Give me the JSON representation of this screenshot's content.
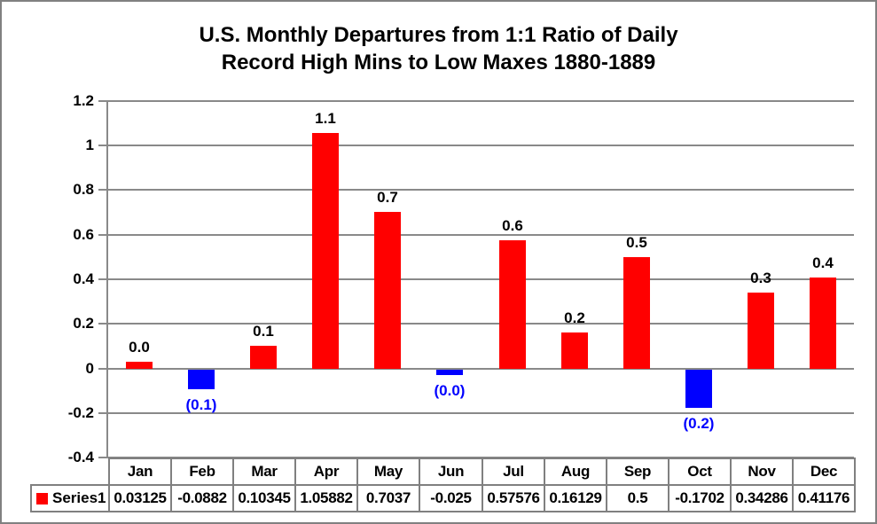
{
  "title": {
    "line1": "U.S. Monthly Departures from 1:1 Ratio of Daily",
    "line2": "Record High Mins to Low Maxes 1880-1889"
  },
  "legend": {
    "series_label": "Series1"
  },
  "colors": {
    "positive_bar": "#ff0000",
    "negative_bar": "#0000ff",
    "negative_label": "#0000ff",
    "positive_label": "#000000",
    "gridline": "#898989",
    "table_border": "#808080",
    "frame_border": "#808080",
    "text": "#000000"
  },
  "chart_data": {
    "type": "bar",
    "title": "U.S. Monthly Departures from 1:1 Ratio of Daily Record High Mins to Low Maxes 1880-1889",
    "categories": [
      "Jan",
      "Feb",
      "Mar",
      "Apr",
      "May",
      "Jun",
      "Jul",
      "Aug",
      "Sep",
      "Oct",
      "Nov",
      "Dec"
    ],
    "series": [
      {
        "name": "Series1",
        "values": [
          0.03125,
          -0.0882,
          0.10345,
          1.05882,
          0.7037,
          -0.025,
          0.57576,
          0.16129,
          0.5,
          -0.1702,
          0.34286,
          0.41176
        ]
      }
    ],
    "value_cell_text": [
      "0.03125",
      "-0.0882",
      "0.10345",
      "1.05882",
      "0.7037",
      "-0.025",
      "0.57576",
      "0.16129",
      "0.5",
      "-0.1702",
      "0.34286",
      "0.41176"
    ],
    "bar_labels": [
      "0.0",
      "(0.1)",
      "0.1",
      "1.1",
      "0.7",
      "(0.0)",
      "0.6",
      "0.2",
      "0.5",
      "(0.2)",
      "0.3",
      "0.4"
    ],
    "y_tick_labels": [
      "1.2",
      "1",
      "0.8",
      "0.6",
      "0.4",
      "0.2",
      "0",
      "-0.2",
      "-0.4"
    ],
    "y_ticks": [
      1.2,
      1.0,
      0.8,
      0.6,
      0.4,
      0.2,
      0.0,
      -0.2,
      -0.4
    ],
    "ylim": [
      -0.4,
      1.2
    ],
    "grid": true,
    "xlabel": "",
    "ylabel": "",
    "legend_position": "data-table-left",
    "has_data_table": true
  }
}
